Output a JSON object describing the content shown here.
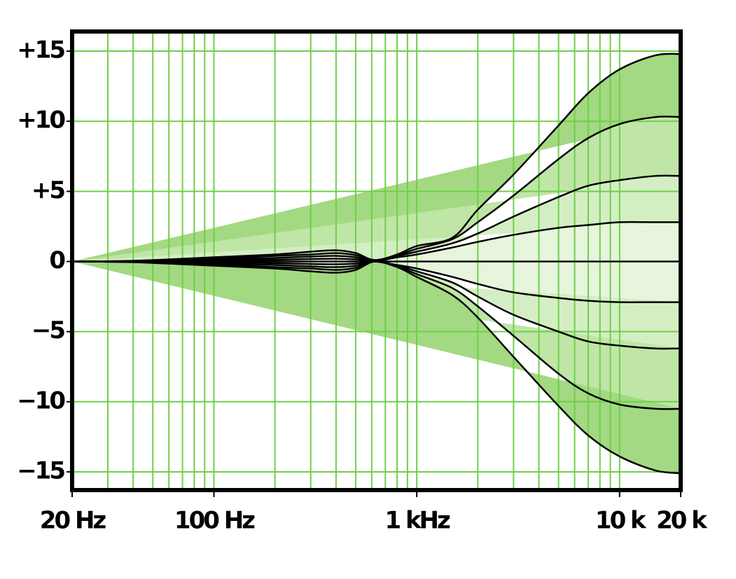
{
  "chart_data": {
    "type": "line",
    "x_scale": "log",
    "x": [
      20,
      40,
      100,
      200,
      300,
      400,
      500,
      620,
      800,
      1000,
      1500,
      2000,
      3000,
      5000,
      7000,
      10000,
      15000,
      20000
    ],
    "series": [
      {
        "color": "#000000",
        "fill": "#a3d982",
        "values": [
          0,
          0.05,
          0.3,
          0.5,
          0.7,
          0.8,
          0.6,
          0.1,
          0.5,
          1.1,
          1.7,
          3.7,
          6.2,
          9.7,
          12,
          13.7,
          14.7,
          14.8
        ]
      },
      {
        "color": "#000000",
        "fill": "#bfe6a6",
        "values": [
          0,
          0.04,
          0.2,
          0.4,
          0.5,
          0.6,
          0.45,
          0.1,
          0.45,
          0.9,
          1.6,
          2.8,
          4.7,
          7.3,
          8.8,
          9.8,
          10.3,
          10.3
        ]
      },
      {
        "color": "#000000",
        "fill": "#d4eec4",
        "values": [
          0,
          0.02,
          0.12,
          0.25,
          0.35,
          0.4,
          0.3,
          0.05,
          0.4,
          0.7,
          1.3,
          2.0,
          3.2,
          4.6,
          5.4,
          5.8,
          6.1,
          6.1
        ]
      },
      {
        "color": "#000000",
        "fill": "#e6f5dc",
        "values": [
          0,
          0.01,
          0.06,
          0.12,
          0.18,
          0.2,
          0.15,
          0.02,
          0.3,
          0.5,
          1.0,
          1.4,
          1.9,
          2.4,
          2.6,
          2.8,
          2.8,
          2.8
        ]
      },
      {
        "color": "#000000",
        "values": [
          0,
          0,
          0,
          0,
          0,
          0,
          0,
          0,
          0,
          0,
          0,
          0,
          0,
          0,
          0,
          0,
          0,
          0
        ]
      },
      {
        "color": "#000000",
        "fill": "#e6f5dc",
        "values": [
          0,
          -0.01,
          -0.06,
          -0.12,
          -0.18,
          -0.2,
          -0.15,
          0,
          -0.25,
          -0.5,
          -1.1,
          -1.6,
          -2.2,
          -2.6,
          -2.8,
          -2.9,
          -2.9,
          -2.9
        ]
      },
      {
        "color": "#000000",
        "fill": "#d4eec4",
        "values": [
          0,
          -0.02,
          -0.12,
          -0.25,
          -0.35,
          -0.4,
          -0.3,
          0,
          -0.3,
          -0.7,
          -1.5,
          -2.5,
          -3.8,
          -5.0,
          -5.7,
          -6.0,
          -6.2,
          -6.2
        ]
      },
      {
        "color": "#000000",
        "fill": "#bfe6a6",
        "values": [
          0,
          -0.04,
          -0.2,
          -0.4,
          -0.5,
          -0.6,
          -0.45,
          0,
          -0.35,
          -0.9,
          -1.9,
          -3.2,
          -5.3,
          -8.0,
          -9.4,
          -10.2,
          -10.5,
          -10.5
        ]
      },
      {
        "color": "#000000",
        "fill": "#a3d982",
        "values": [
          0,
          -0.05,
          -0.3,
          -0.5,
          -0.7,
          -0.8,
          -0.6,
          0,
          -0.4,
          -1.1,
          -2.4,
          -4.0,
          -6.8,
          -10.3,
          -12.4,
          -13.9,
          -14.9,
          -15.1
        ]
      }
    ],
    "xlim": [
      20,
      20000
    ],
    "xticks": [
      {
        "value": 20,
        "label": "20 Hz"
      },
      {
        "value": 100,
        "label": "100 Hz"
      },
      {
        "value": 1000,
        "label": "1 kHz"
      },
      {
        "value": 10000,
        "label": "10 k"
      },
      {
        "value": 20000,
        "label": "20 k"
      }
    ],
    "x_grid_lines": [
      20,
      30,
      40,
      50,
      60,
      70,
      80,
      90,
      100,
      200,
      300,
      400,
      500,
      600,
      700,
      800,
      900,
      1000,
      2000,
      3000,
      4000,
      5000,
      6000,
      7000,
      8000,
      9000,
      10000,
      20000
    ],
    "ylim": [
      -16.3,
      16.4
    ],
    "yticks": [
      {
        "value": 15,
        "label": "+15"
      },
      {
        "value": 10,
        "label": "+10"
      },
      {
        "value": 5,
        "label": "+5"
      },
      0,
      {
        "value": -5,
        "label": "−5"
      },
      {
        "value": -10,
        "label": "−10"
      },
      {
        "value": -15,
        "label": "−15"
      }
    ],
    "grid": true,
    "grid_color": "#6fcf4a"
  }
}
